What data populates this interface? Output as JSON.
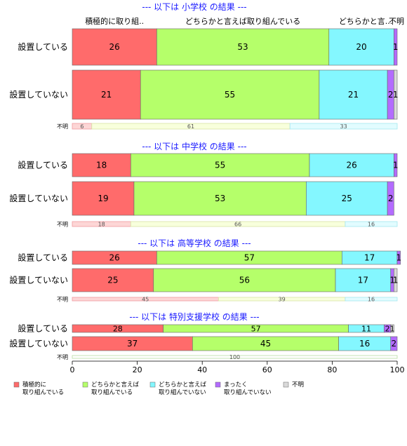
{
  "chart_data": {
    "type": "bar",
    "orientation": "horizontal",
    "stacked": true,
    "xlim": [
      0,
      100
    ],
    "x_ticks": [
      "0",
      "20",
      "40",
      "60",
      "80",
      "100"
    ],
    "grid": false,
    "legend_position": "bottom",
    "series": [
      {
        "name": "積極的に\n取り組んでいる",
        "color": "#ff6b6b"
      },
      {
        "name": "どちらかと言えば\n取り組んでいる",
        "color": "#b5ff6a"
      },
      {
        "name": "どちらかと言えば\n取り組んでいない",
        "color": "#84f7ff"
      },
      {
        "name": "まったく\n取り組んでいない",
        "color": "#b36bff"
      },
      {
        "name": "不明",
        "color": "#d9d9d9"
      }
    ],
    "column_header": [
      "積極的に取り組..",
      "どちらかと言えば取り組んでいる",
      "どちらかと言...",
      "不明"
    ],
    "panels": [
      {
        "title": "--- 以下は 小学校 の結果 ---",
        "rows": [
          {
            "label": "設置している",
            "values": [
              26,
              53,
              20,
              1,
              0
            ]
          },
          {
            "label": "設置していない",
            "values": [
              21,
              55,
              21,
              2,
              1
            ]
          }
        ],
        "unknown": {
          "label": "不明",
          "values": [
            6,
            61,
            33
          ]
        }
      },
      {
        "title": "--- 以下は 中学校 の結果 ---",
        "rows": [
          {
            "label": "設置している",
            "values": [
              18,
              55,
              26,
              1,
              0
            ]
          },
          {
            "label": "設置していない",
            "values": [
              19,
              53,
              25,
              2,
              0
            ]
          }
        ],
        "unknown": {
          "label": "不明",
          "values": [
            18,
            66,
            16
          ]
        }
      },
      {
        "title": "--- 以下は 高等学校 の結果 ---",
        "rows": [
          {
            "label": "設置している",
            "values": [
              26,
              57,
              17,
              1,
              0
            ]
          },
          {
            "label": "設置していない",
            "values": [
              25,
              56,
              17,
              1,
              1
            ]
          }
        ],
        "unknown": {
          "label": "不明",
          "values": [
            45,
            39,
            16
          ]
        }
      },
      {
        "title": "--- 以下は 特別支援学校 の結果 ---",
        "rows": [
          {
            "label": "設置している",
            "values": [
              28,
              57,
              11,
              2,
              1
            ]
          },
          {
            "label": "設置していない",
            "values": [
              37,
              45,
              16,
              2,
              0
            ]
          }
        ],
        "unknown": {
          "label": "不明",
          "values": [
            100
          ]
        }
      }
    ]
  }
}
